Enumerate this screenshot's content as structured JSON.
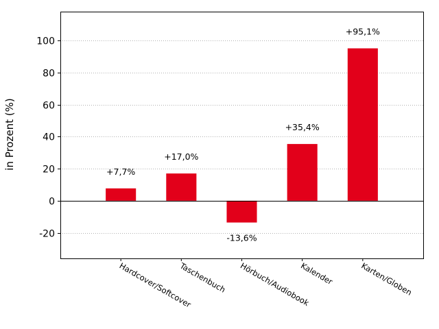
{
  "chart_data": {
    "type": "bar",
    "categories": [
      "Hardcover/Softcover",
      "Taschenbuch",
      "Hörbuch/Audiobook",
      "Kalender",
      "Karten/Globen"
    ],
    "values": [
      7.7,
      17.0,
      -13.6,
      35.4,
      95.1
    ],
    "data_labels": [
      "+7,7%",
      "+17,0%",
      "-13,6%",
      "+35,4%",
      "+95,1%"
    ],
    "ylabel": "in Prozent (%)",
    "ylim": [
      -36,
      118
    ],
    "yticks": [
      -20,
      0,
      20,
      40,
      60,
      80,
      100
    ],
    "x_slots": 6,
    "bar_color": "#e2001a",
    "grid": "horizontal dotted",
    "zero_line": true
  }
}
